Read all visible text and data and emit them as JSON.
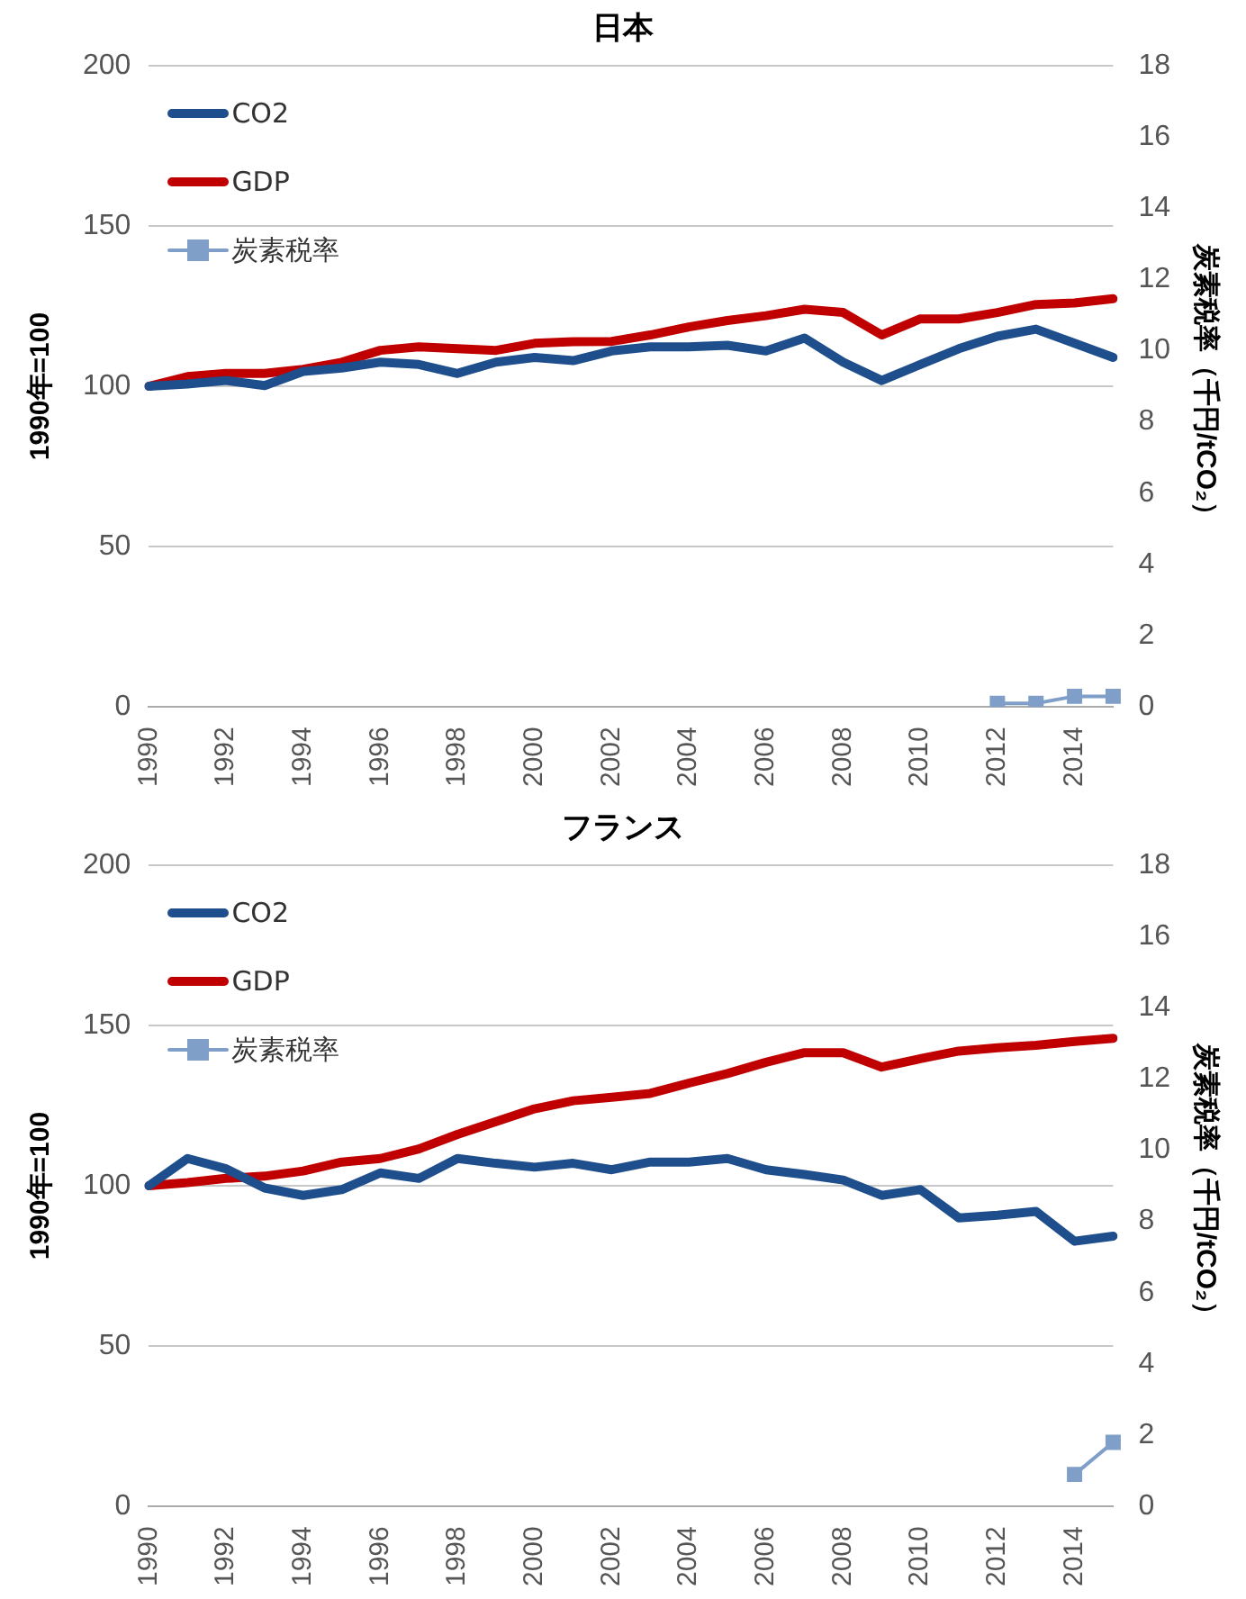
{
  "chart_data": [
    {
      "type": "line",
      "title": "日本",
      "ylabel": "1990年=100",
      "y2label": "炭素税率（千円/tCO₂）",
      "categories": [
        "1990",
        null,
        "1992",
        null,
        "1994",
        null,
        "1996",
        null,
        "1998",
        null,
        "2000",
        null,
        "2002",
        null,
        "2004",
        null,
        "2006",
        null,
        "2008",
        null,
        "2010",
        null,
        "2012",
        null,
        "2014",
        null
      ],
      "series": [
        {
          "name": "CO2",
          "color": "#1f4e8c",
          "marker": "none",
          "values": [
            100,
            100.7,
            101.8,
            100.2,
            104.6,
            105.7,
            107.5,
            106.8,
            104,
            107.5,
            109,
            108,
            111,
            112.3,
            112.3,
            112.8,
            111,
            115,
            107.5,
            101.8,
            106.8,
            111.7,
            115.6,
            117.8,
            113.4,
            109
          ]
        },
        {
          "name": "GDP",
          "color": "#c00000",
          "marker": "none",
          "values": [
            100,
            103,
            104,
            104,
            105.3,
            107.5,
            111.2,
            112.3,
            111.7,
            111.2,
            113.4,
            113.9,
            114,
            116,
            118.5,
            120.5,
            122,
            124,
            123,
            116,
            121,
            121,
            123,
            125.5,
            126,
            127.3
          ]
        },
        {
          "name": "炭素税率",
          "color": "#7f9fc8",
          "marker": "square",
          "axis": "y2",
          "values": [
            null,
            null,
            null,
            null,
            null,
            null,
            null,
            null,
            null,
            null,
            null,
            null,
            null,
            null,
            null,
            null,
            null,
            null,
            null,
            null,
            null,
            null,
            0.1,
            0.1,
            0.3,
            0.3
          ]
        }
      ],
      "ylim": [
        0,
        200
      ],
      "yticks": [
        0,
        50,
        100,
        150,
        200
      ],
      "y2lim": [
        0,
        18
      ],
      "y2ticks": [
        0,
        2,
        4,
        6,
        8,
        10,
        12,
        14,
        16,
        18
      ],
      "grid": "y",
      "legend": "top left"
    },
    {
      "type": "line",
      "title": "フランス",
      "ylabel": "1990年=100",
      "y2label": "炭素税率（千円/tCO₂）",
      "categories": [
        "1990",
        null,
        "1992",
        null,
        "1994",
        null,
        "1996",
        null,
        "1998",
        null,
        "2000",
        null,
        "2002",
        null,
        "2004",
        null,
        "2006",
        null,
        "2008",
        null,
        "2010",
        null,
        "2012",
        null,
        "2014",
        null
      ],
      "series": [
        {
          "name": "CO2",
          "color": "#1f4e8c",
          "marker": "none",
          "values": [
            100,
            108.5,
            105.3,
            99.3,
            97,
            98.8,
            104,
            102.3,
            108.5,
            107,
            105.8,
            107,
            105,
            107.4,
            107.4,
            108.5,
            105,
            103.5,
            101.8,
            97,
            98.8,
            90,
            90.8,
            92,
            82.7,
            84.3
          ]
        },
        {
          "name": "GDP",
          "color": "#c00000",
          "marker": "none",
          "values": [
            100,
            101,
            102.3,
            103,
            104.6,
            107.4,
            108.5,
            111.5,
            116,
            120,
            124,
            126.5,
            127.6,
            128.8,
            132,
            135,
            138.5,
            141.5,
            141.5,
            137,
            139.6,
            142,
            143,
            143.8,
            145,
            146
          ]
        },
        {
          "name": "炭素税率",
          "color": "#7f9fc8",
          "marker": "square",
          "axis": "y2",
          "values": [
            null,
            null,
            null,
            null,
            null,
            null,
            null,
            null,
            null,
            null,
            null,
            null,
            null,
            null,
            null,
            null,
            null,
            null,
            null,
            null,
            null,
            null,
            null,
            null,
            0.9,
            1.8
          ]
        }
      ],
      "ylim": [
        0,
        200
      ],
      "yticks": [
        0,
        50,
        100,
        150,
        200
      ],
      "y2lim": [
        0,
        18
      ],
      "y2ticks": [
        0,
        2,
        4,
        6,
        8,
        10,
        12,
        14,
        16,
        18
      ],
      "grid": "y",
      "legend": "top left"
    }
  ]
}
